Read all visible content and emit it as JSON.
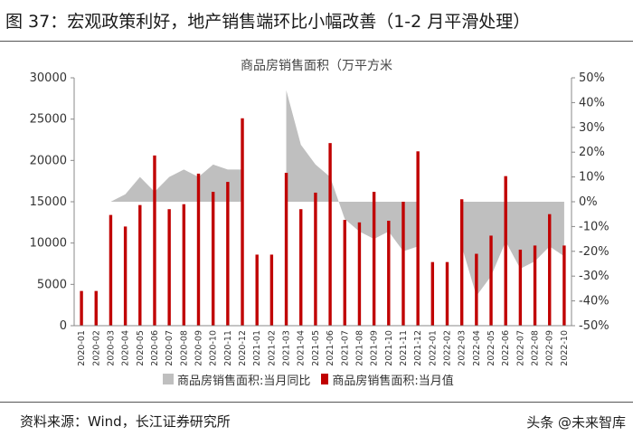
{
  "figure": {
    "title": "图 37：宏观政策利好，地产销售端环比小幅改善（1-2 月平滑处理）",
    "source": "资料来源：Wind，长江证券研究所",
    "watermark": "头条 @未来智库"
  },
  "chart_data": {
    "type": "bar",
    "title": "商品房销售面积（万平方米",
    "categories": [
      "2020-01",
      "2020-02",
      "2020-03",
      "2020-04",
      "2020-05",
      "2020-06",
      "2020-07",
      "2020-08",
      "2020-09",
      "2020-10",
      "2020-11",
      "2020-12",
      "2021-01",
      "2021-02",
      "2021-03",
      "2021-04",
      "2021-05",
      "2021-06",
      "2021-07",
      "2021-08",
      "2021-09",
      "2021-10",
      "2021-11",
      "2021-12",
      "2022-01",
      "2022-02",
      "2022-03",
      "2022-04",
      "2022-05",
      "2022-06",
      "2022-07",
      "2022-08",
      "2022-09",
      "2022-10"
    ],
    "series": [
      {
        "name": "商品房销售面积:当月值",
        "kind": "bar",
        "axis": "left",
        "color": "#c00000",
        "values": [
          4200,
          4200,
          13400,
          12000,
          14600,
          20600,
          14100,
          14700,
          18400,
          16200,
          17400,
          25100,
          8600,
          8600,
          18500,
          14100,
          16100,
          22100,
          12800,
          12500,
          16200,
          12700,
          15000,
          21100,
          7700,
          7700,
          15300,
          8700,
          10900,
          18100,
          9200,
          9700,
          13500,
          9700
        ]
      },
      {
        "name": "商品房销售面积:当月同比",
        "kind": "area",
        "axis": "right",
        "color": "#bfbfbf",
        "values": [
          null,
          null,
          0,
          3,
          10,
          4,
          10,
          13,
          10,
          15,
          13,
          13,
          null,
          null,
          45,
          23,
          15,
          10,
          -7,
          -12,
          -15,
          -12,
          -20,
          -18,
          null,
          null,
          -18,
          -38,
          -30,
          -16,
          -27,
          -24,
          -18,
          -22
        ]
      }
    ],
    "y_left": {
      "min": 0,
      "max": 30000,
      "ticks": [
        0,
        5000,
        10000,
        15000,
        20000,
        25000,
        30000
      ]
    },
    "y_right": {
      "min": -50,
      "max": 50,
      "ticks": [
        "50%",
        "40%",
        "30%",
        "20%",
        "10%",
        "0%",
        "-10%",
        "-20%",
        "-30%",
        "-40%",
        "-50%"
      ]
    },
    "grid": false,
    "legend_position": "bottom"
  }
}
